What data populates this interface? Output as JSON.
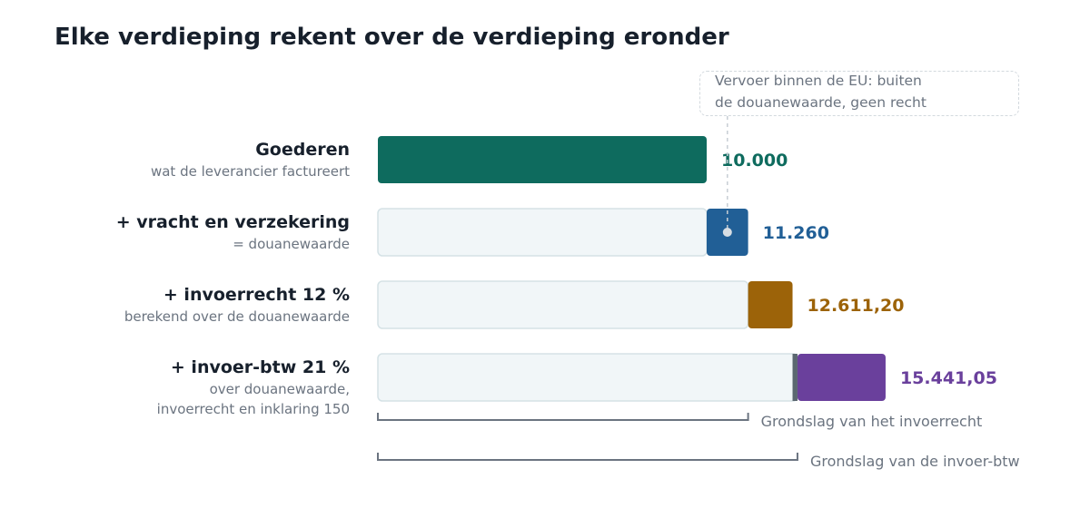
{
  "title": "Elke verdieping rekent over de verdieping eronder",
  "colors": {
    "goederen": "#0e6b5e",
    "vracht": "#215f96",
    "invoerrecht": "#9c6309",
    "btw": "#6a409c",
    "base_fill": "#f1f6f8",
    "base_stroke": "#d5e2e6",
    "bracket": "#6b7480"
  },
  "rows": [
    {
      "label": "Goederen",
      "sub": [
        "wat de leverancier factureert"
      ],
      "value_label": "10.000"
    },
    {
      "label": "+ vracht en verzekering",
      "sub": [
        "= douanewaarde"
      ],
      "value_label": "11.260"
    },
    {
      "label": "+ invoerrecht 12 %",
      "sub": [
        "berekend over de douanewaarde"
      ],
      "value_label": "12.611,20"
    },
    {
      "label": "+ invoer-btw 21 %",
      "sub": [
        "over douanewaarde,",
        "invoerrecht en inklaring 150"
      ],
      "value_label": "15.441,05"
    }
  ],
  "callout": [
    "Vervoer binnen de EU: buiten",
    "de douanewaarde, geen recht"
  ],
  "brackets": [
    {
      "label": "Grondslag van het invoerrecht"
    },
    {
      "label": "Grondslag van de invoer-btw"
    }
  ],
  "chart_data": {
    "type": "bar",
    "orientation": "horizontal-stacked-waterfall",
    "categories": [
      "Goederen",
      "+ vracht en verzekering",
      "+ invoerrecht 12 %",
      "+ invoer-btw 21 %"
    ],
    "series": [
      {
        "values": [
          0,
          10000,
          11260,
          12761.2
        ]
      },
      {
        "values": [
          10000,
          1260,
          1351.2,
          2679.85
        ]
      }
    ],
    "totals": [
      10000,
      11260,
      12611.2,
      15441.05
    ],
    "inklaring": 150
  }
}
